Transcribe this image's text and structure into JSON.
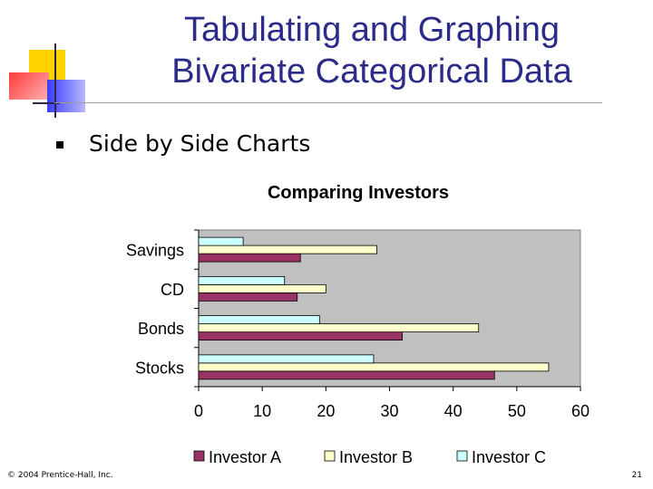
{
  "slide": {
    "title_line1": "Tabulating and Graphing",
    "title_line2": "Bivariate Categorical Data",
    "bullet": "Side by Side Charts",
    "footer_left": "© 2004 Prentice-Hall, Inc.",
    "page_number": "21"
  },
  "colors": {
    "title": "#2b2b8a",
    "plot_bg": "#c0c0c0",
    "deco_yellow": "#ffd200",
    "deco_red": "#ff5a5a",
    "deco_blue": "#5050ff"
  },
  "chart_data": {
    "type": "bar",
    "orientation": "horizontal",
    "title": "Comparing Investors",
    "categories": [
      "Stocks",
      "Bonds",
      "CD",
      "Savings"
    ],
    "series": [
      {
        "name": "Investor A",
        "color": "#993366",
        "values": [
          46.5,
          32,
          15.5,
          16
        ]
      },
      {
        "name": "Investor B",
        "color": "#ffffcc",
        "values": [
          55,
          44,
          20,
          28
        ]
      },
      {
        "name": "Investor C",
        "color": "#ccffff",
        "values": [
          27.5,
          19,
          13.5,
          7
        ]
      }
    ],
    "xlim": [
      0,
      60
    ],
    "xticks": [
      "0",
      "10",
      "20",
      "30",
      "40",
      "50",
      "60"
    ],
    "grid": false,
    "legend": "bottom"
  }
}
